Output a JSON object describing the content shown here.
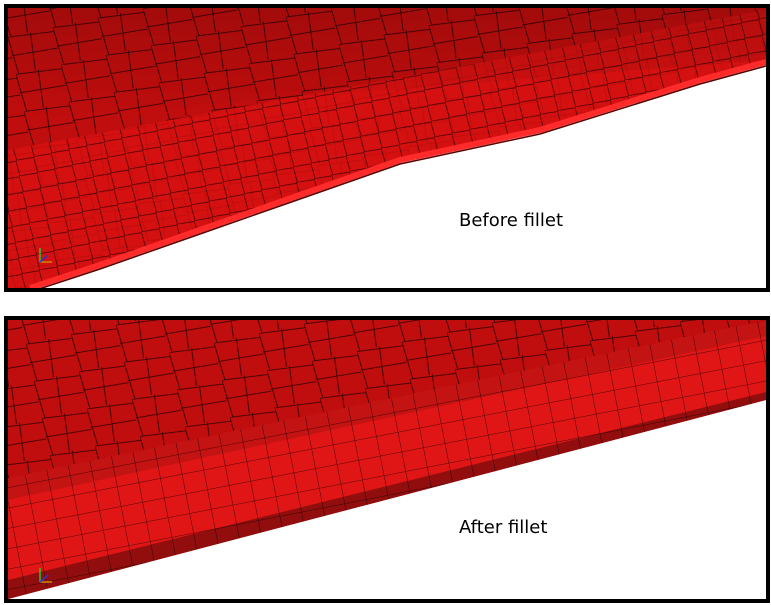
{
  "panels": [
    {
      "label": "Before fillet"
    },
    {
      "label": "After fillet"
    }
  ]
}
